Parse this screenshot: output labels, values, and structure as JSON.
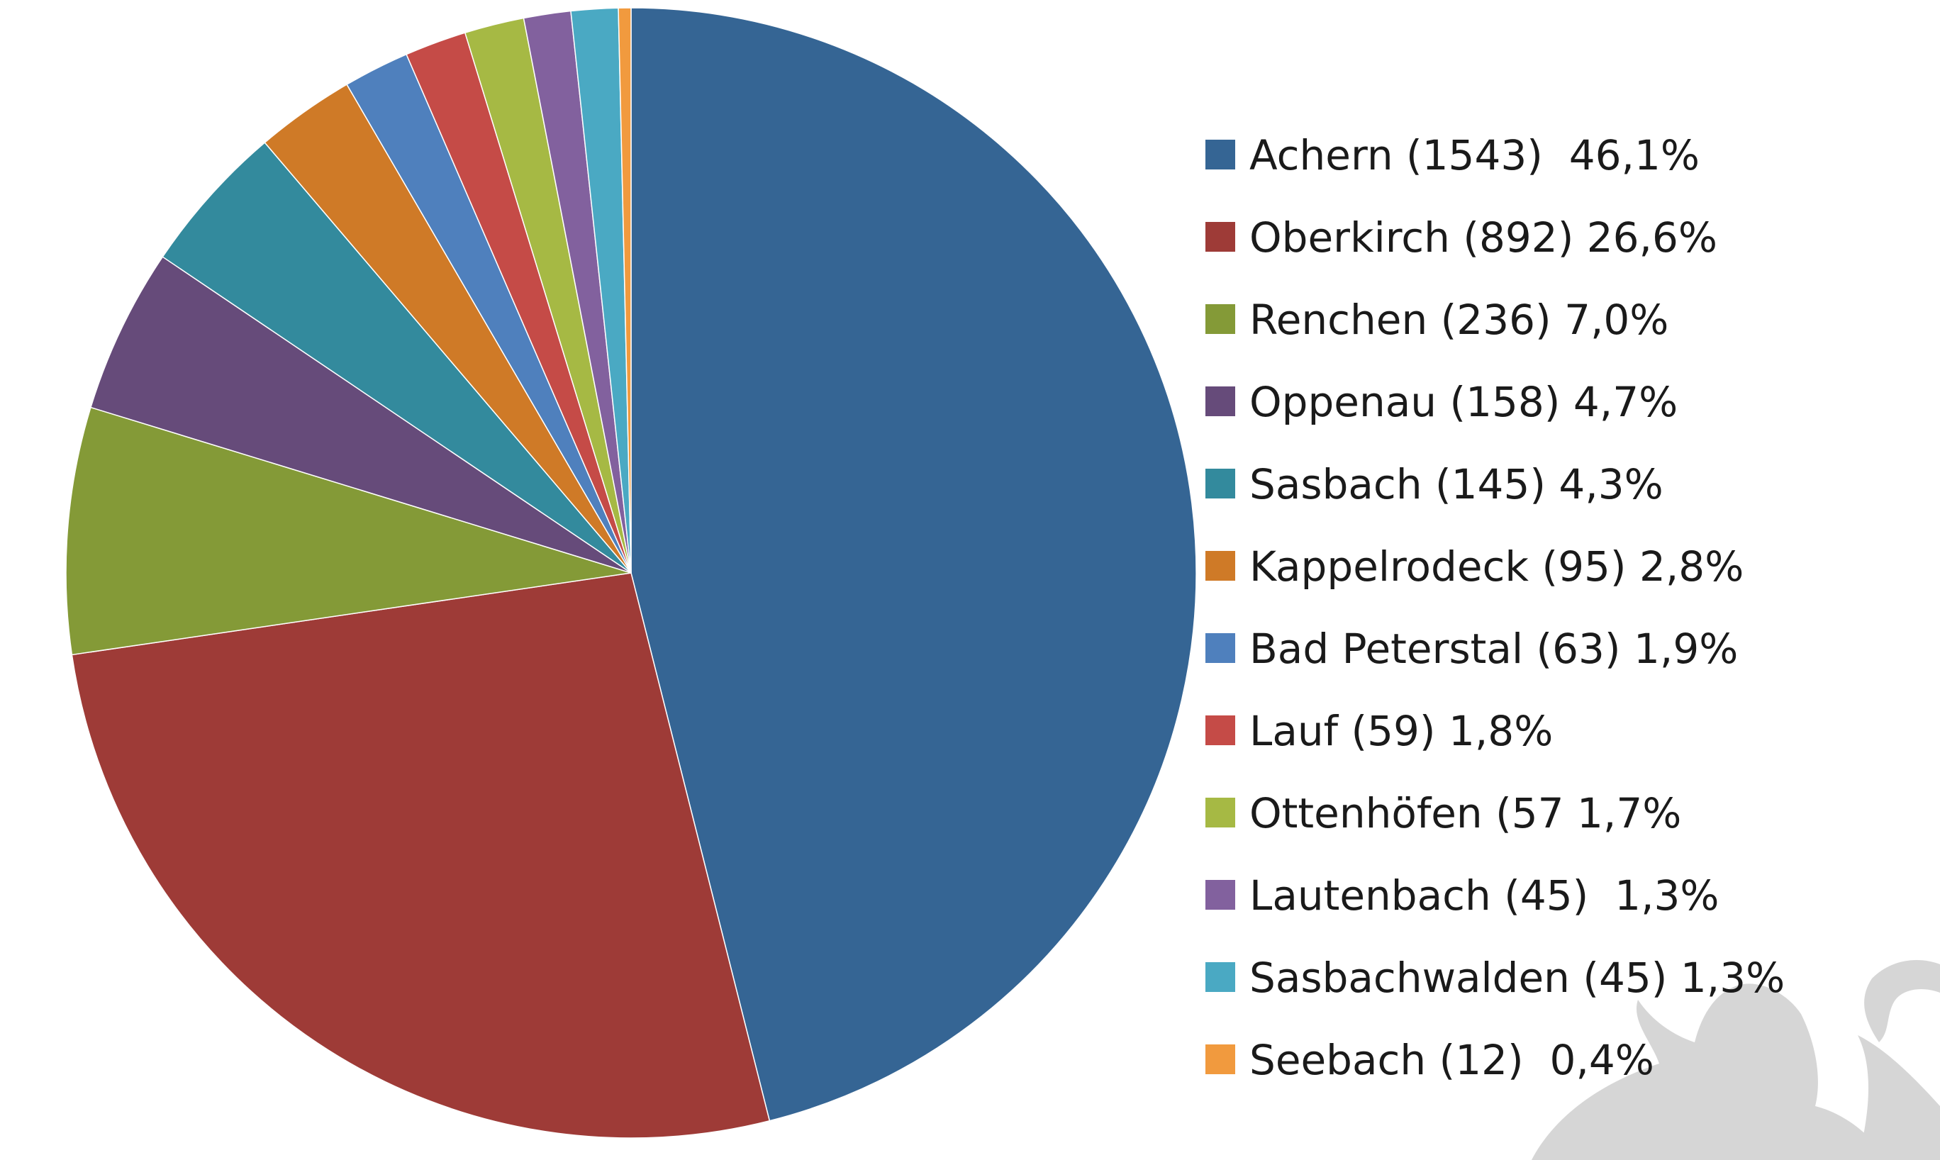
{
  "chart_data": {
    "type": "pie",
    "title": "",
    "start_angle_deg": 0,
    "direction": "clockwise",
    "legend_position": "right",
    "slices": [
      {
        "name": "Achern",
        "count": 1543,
        "percent": 46.1,
        "label": "Achern (1543)  46,1%",
        "color": "#356594"
      },
      {
        "name": "Oberkirch",
        "count": 892,
        "percent": 26.6,
        "label": "Oberkirch (892) 26,6%",
        "color": "#9e3b37"
      },
      {
        "name": "Renchen",
        "count": 236,
        "percent": 7.0,
        "label": "Renchen (236) 7,0%",
        "color": "#849a37"
      },
      {
        "name": "Oppenau",
        "count": 158,
        "percent": 4.7,
        "label": "Oppenau (158) 4,7%",
        "color": "#664b7a"
      },
      {
        "name": "Sasbach",
        "count": 145,
        "percent": 4.3,
        "label": "Sasbach (145) 4,3%",
        "color": "#338a9d"
      },
      {
        "name": "Kappelrodeck",
        "count": 95,
        "percent": 2.8,
        "label": "Kappelrodeck (95) 2,8%",
        "color": "#cf7a27"
      },
      {
        "name": "Bad Peterstal",
        "count": 63,
        "percent": 1.9,
        "label": "Bad Peterstal (63) 1,9%",
        "color": "#4f80bd"
      },
      {
        "name": "Lauf",
        "count": 59,
        "percent": 1.8,
        "label": "Lauf (59) 1,8%",
        "color": "#c54b47"
      },
      {
        "name": "Ottenhöfen",
        "count": 57,
        "percent": 1.7,
        "label": "Ottenhöfen (57 1,7%",
        "color": "#a6b944"
      },
      {
        "name": "Lautenbach",
        "count": 45,
        "percent": 1.3,
        "label": "Lautenbach (45)  1,3%",
        "color": "#82619e"
      },
      {
        "name": "Sasbachwalden",
        "count": 45,
        "percent": 1.3,
        "label": "Sasbachwalden (45) 1,3%",
        "color": "#4aa9c3"
      },
      {
        "name": "Seebach",
        "count": 12,
        "percent": 0.4,
        "label": "Seebach (12)  0,4%",
        "color": "#f19a3e"
      }
    ]
  },
  "watermark": {
    "description_icon": "lion-watermark-icon",
    "color": "#d6d6d6"
  }
}
